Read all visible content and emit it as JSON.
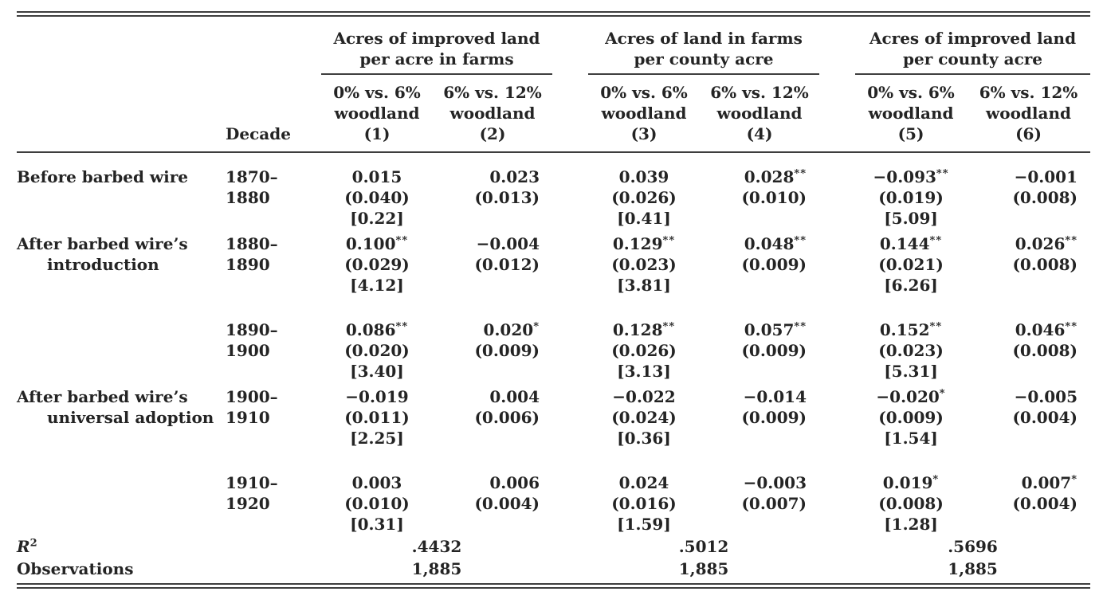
{
  "page": {
    "background": "#ffffff",
    "text_color": "#242424",
    "rule_color": "#3e3e3e"
  },
  "table": {
    "stub": {
      "decade_header": "Decade"
    },
    "groups": [
      {
        "title_lines": [
          "Acres of improved land",
          "per acre in farms"
        ],
        "columns": [
          {
            "lines": [
              "0% vs. 6%",
              "woodland",
              "(1)"
            ]
          },
          {
            "lines": [
              "6% vs. 12%",
              "woodland",
              "(2)"
            ]
          }
        ]
      },
      {
        "title_lines": [
          "Acres of land in farms",
          "per county acre"
        ],
        "columns": [
          {
            "lines": [
              "0% vs. 6%",
              "woodland",
              "(3)"
            ]
          },
          {
            "lines": [
              "6% vs. 12%",
              "woodland",
              "(4)"
            ]
          }
        ]
      },
      {
        "title_lines": [
          "Acres of improved land",
          "per county acre"
        ],
        "columns": [
          {
            "lines": [
              "0% vs. 6%",
              "woodland",
              "(5)"
            ]
          },
          {
            "lines": [
              "6% vs. 12%",
              "woodland",
              "(6)"
            ]
          }
        ]
      }
    ],
    "rows": [
      {
        "label_lines": [
          "Before barbed wire"
        ],
        "decade": "1870–1880",
        "extra_space": false,
        "cells": [
          {
            "est": "0.015",
            "stars": "",
            "se": "(0.040)",
            "tstat": "[0.22]"
          },
          {
            "est": "0.023",
            "stars": "",
            "se": "(0.013)"
          },
          {
            "est": "0.039",
            "stars": "",
            "se": "(0.026)",
            "tstat": "[0.41]"
          },
          {
            "est": "0.028",
            "stars": "**",
            "se": "(0.010)"
          },
          {
            "est": "−0.093",
            "stars": "**",
            "se": "(0.019)",
            "tstat": "[5.09]"
          },
          {
            "est": "−0.001",
            "stars": "",
            "se": "(0.008)"
          }
        ]
      },
      {
        "label_lines": [
          "After barbed wire’s",
          "introduction"
        ],
        "decade": "1880–1890",
        "extra_space": false,
        "cells": [
          {
            "est": "0.100",
            "stars": "**",
            "se": "(0.029)",
            "tstat": "[4.12]"
          },
          {
            "est": "−0.004",
            "stars": "",
            "se": "(0.012)"
          },
          {
            "est": "0.129",
            "stars": "**",
            "se": "(0.023)",
            "tstat": "[3.81]"
          },
          {
            "est": "0.048",
            "stars": "**",
            "se": "(0.009)"
          },
          {
            "est": "0.144",
            "stars": "**",
            "se": "(0.021)",
            "tstat": "[6.26]"
          },
          {
            "est": "0.026",
            "stars": "**",
            "se": "(0.008)"
          }
        ]
      },
      {
        "label_lines": [],
        "decade": "1890–1900",
        "extra_space": true,
        "cells": [
          {
            "est": "0.086",
            "stars": "**",
            "se": "(0.020)",
            "tstat": "[3.40]"
          },
          {
            "est": "0.020",
            "stars": "*",
            "se": "(0.009)"
          },
          {
            "est": "0.128",
            "stars": "**",
            "se": "(0.026)",
            "tstat": "[3.13]"
          },
          {
            "est": "0.057",
            "stars": "**",
            "se": "(0.009)"
          },
          {
            "est": "0.152",
            "stars": "**",
            "se": "(0.023)",
            "tstat": "[5.31]"
          },
          {
            "est": "0.046",
            "stars": "**",
            "se": "(0.008)"
          }
        ]
      },
      {
        "label_lines": [
          "After barbed wire’s",
          "universal adoption"
        ],
        "decade": "1900–1910",
        "extra_space": false,
        "cells": [
          {
            "est": "−0.019",
            "stars": "",
            "se": "(0.011)",
            "tstat": "[2.25]"
          },
          {
            "est": "0.004",
            "stars": "",
            "se": "(0.006)"
          },
          {
            "est": "−0.022",
            "stars": "",
            "se": "(0.024)",
            "tstat": "[0.36]"
          },
          {
            "est": "−0.014",
            "stars": "",
            "se": "(0.009)"
          },
          {
            "est": "−0.020",
            "stars": "*",
            "se": "(0.009)",
            "tstat": "[1.54]"
          },
          {
            "est": "−0.005",
            "stars": "",
            "se": "(0.004)"
          }
        ]
      },
      {
        "label_lines": [],
        "decade": "1910–1920",
        "extra_space": true,
        "cells": [
          {
            "est": "0.003",
            "stars": "",
            "se": "(0.010)",
            "tstat": "[0.31]"
          },
          {
            "est": "0.006",
            "stars": "",
            "se": "(0.004)"
          },
          {
            "est": "0.024",
            "stars": "",
            "se": "(0.016)",
            "tstat": "[1.59]"
          },
          {
            "est": "−0.003",
            "stars": "",
            "se": "(0.007)"
          },
          {
            "est": "0.019",
            "stars": "*",
            "se": "(0.008)",
            "tstat": "[1.28]"
          },
          {
            "est": "0.007",
            "stars": "*",
            "se": "(0.004)"
          }
        ]
      }
    ],
    "stats_rows": [
      {
        "name": "r-squared",
        "label_main": "R",
        "label_sup": "2",
        "italic": true,
        "values": [
          ".4432",
          ".5012",
          ".5696"
        ]
      },
      {
        "name": "observations",
        "label_main": "Observations",
        "label_sup": "",
        "italic": false,
        "values": [
          "1,885",
          "1,885",
          "1,885"
        ]
      }
    ]
  }
}
